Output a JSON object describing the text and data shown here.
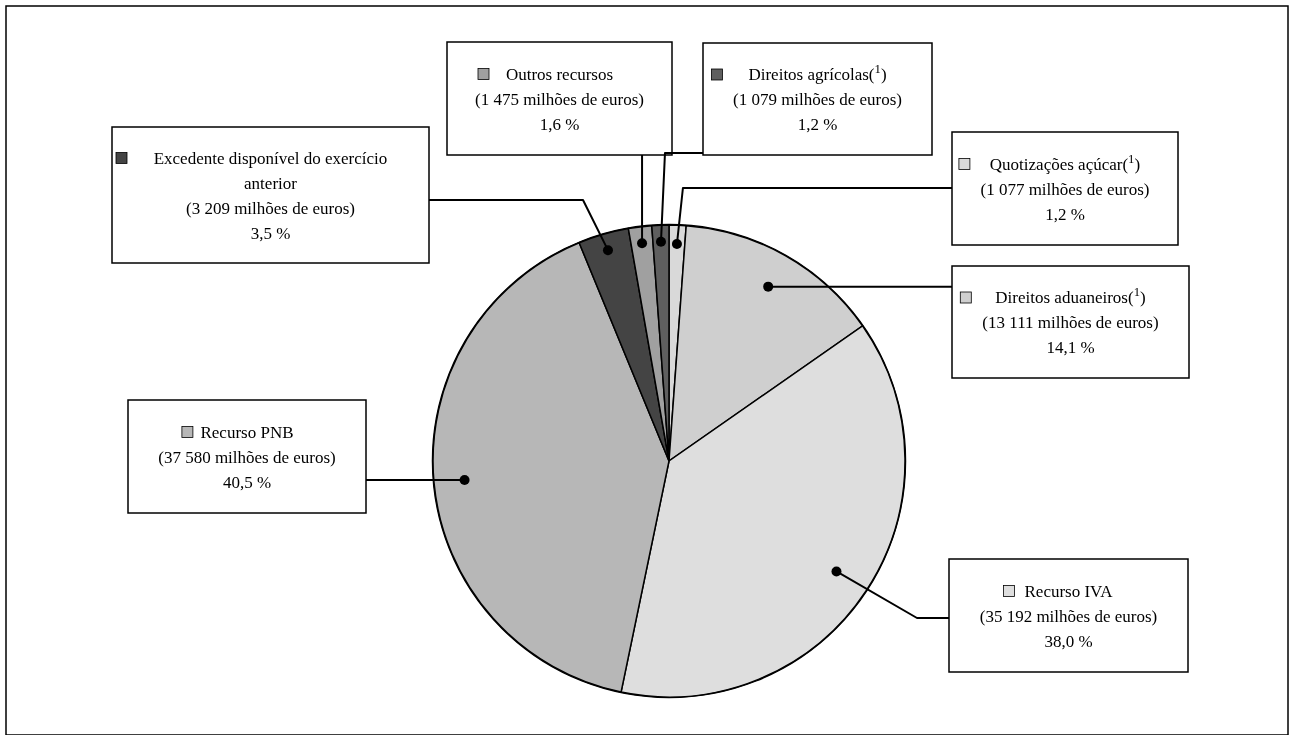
{
  "chart_data": {
    "type": "pie",
    "categories": [
      "Quotizações açúcar($^{1}$)",
      "Direitos aduaneiros($^{1}$)",
      "Recurso IVA",
      "Recurso PNB",
      "Excedente disponível do exercício anterior",
      "Outros recursos",
      "Direitos agrícolas($^{1}$)"
    ],
    "values": [
      1077,
      13111,
      35192,
      37580,
      3209,
      1475,
      1079
    ],
    "colors": [
      "#d9d9d9",
      "#cfcfcf",
      "#dedede",
      "#b7b7b7",
      "#444444",
      "#a0a0a0",
      "#5f5f5f"
    ],
    "value_labels": [
      "(1 077 milhões de euros)\n1,2 %",
      "(13 111 milhões de euros)\n14,1 %",
      "(35 192 milhões de euros)\n38,0 %",
      "(37 580 milhões de euros)\n40,5 %",
      "(3 209 milhões de euros)\n3,5 %",
      "(1 475 milhões de euros)\n1,6 %",
      "(1 079 milhões de euros)\n1,2 %"
    ],
    "legend": "top left"
  }
}
